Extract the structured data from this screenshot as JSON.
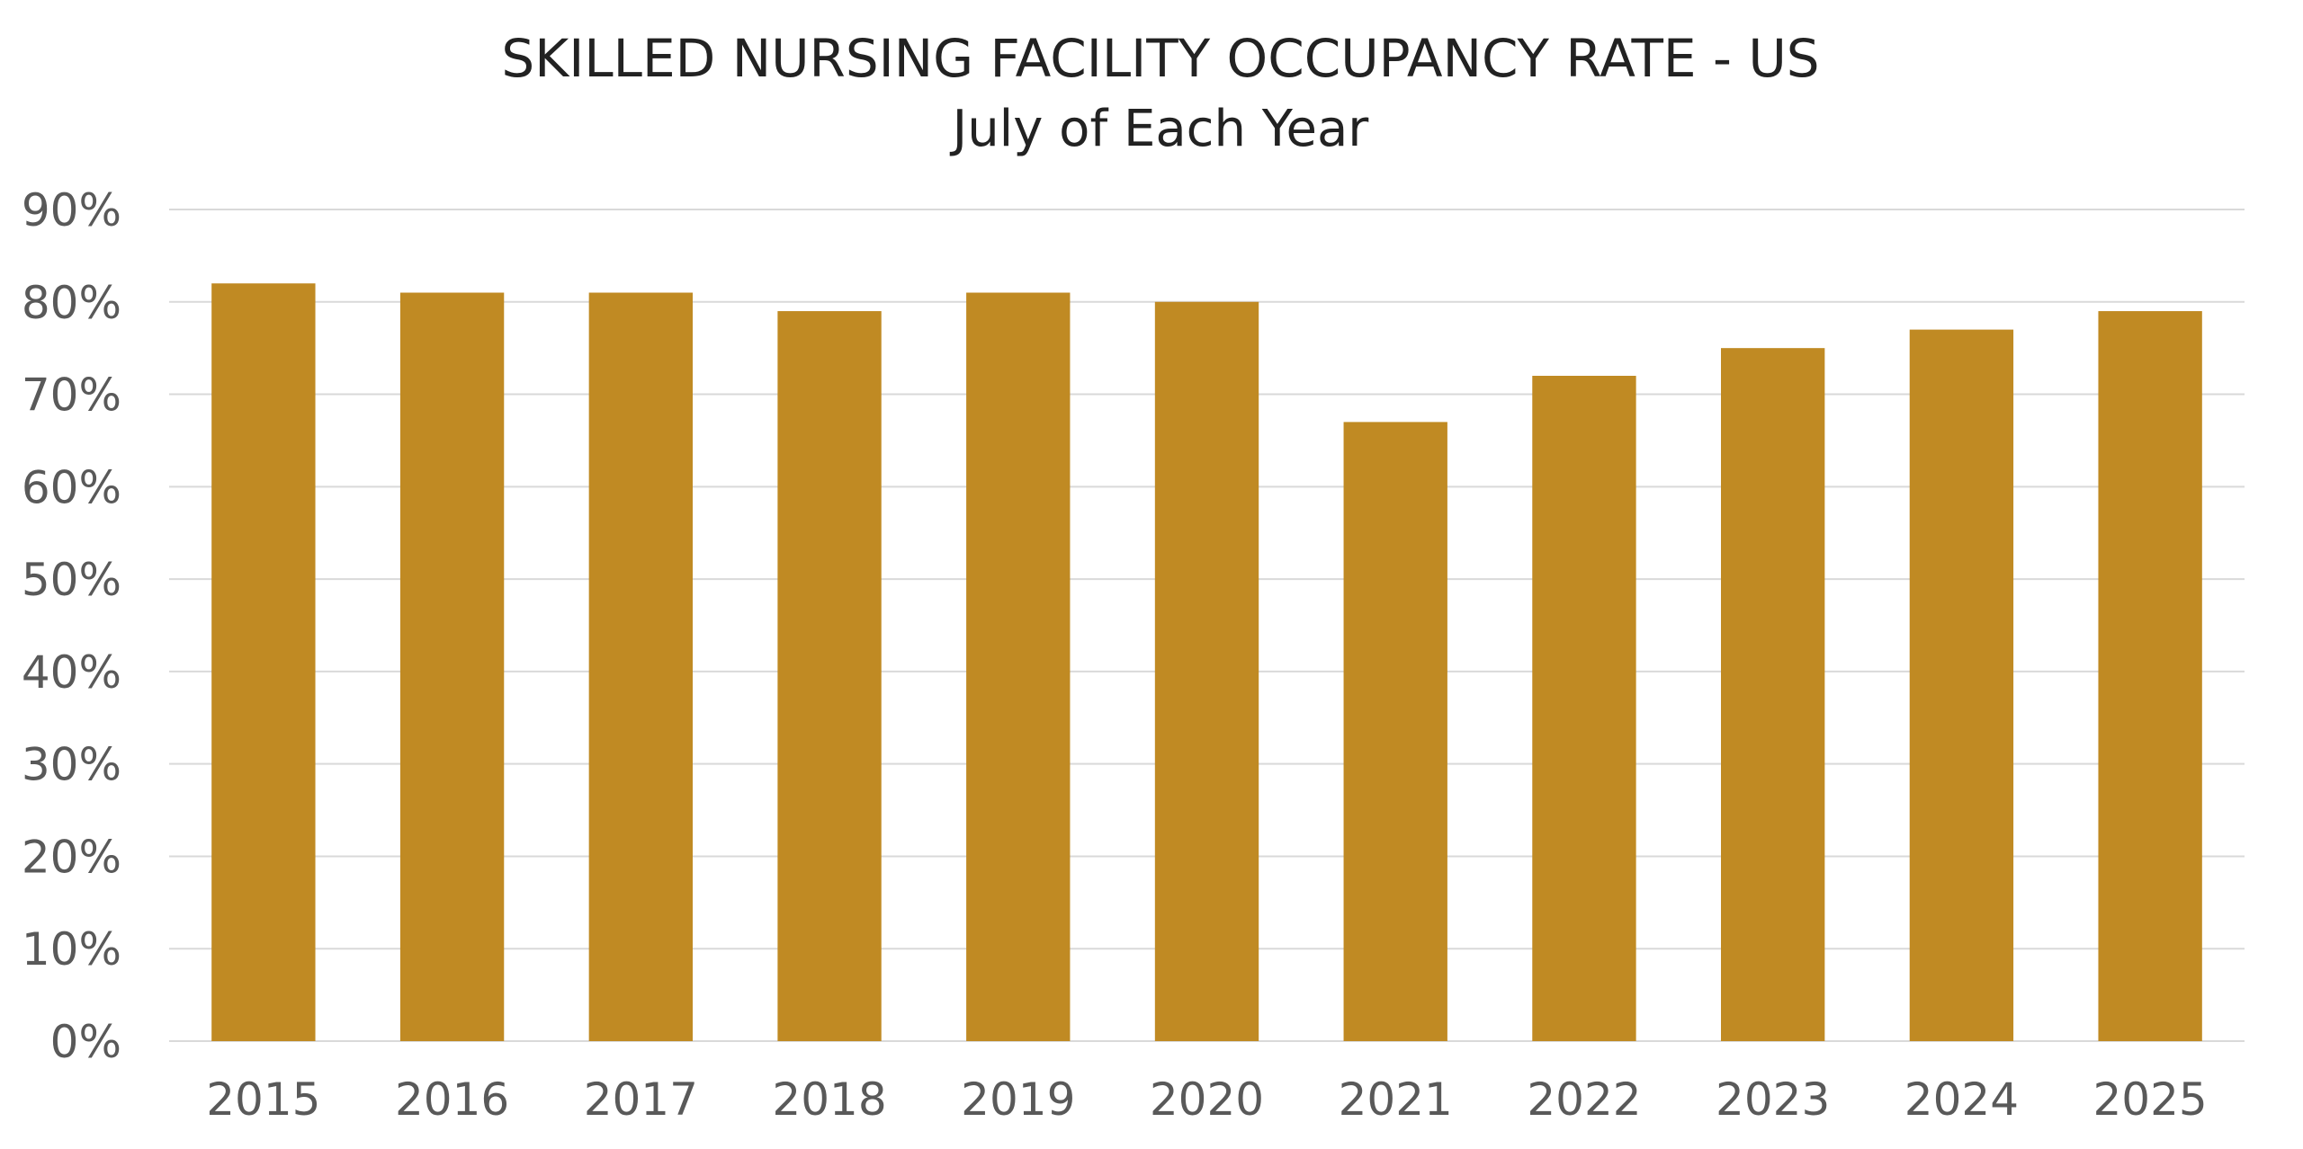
{
  "chart_data": {
    "type": "bar",
    "title": "SKILLED NURSING FACILITY OCCUPANCY RATE - US",
    "subtitle": "July of Each Year",
    "xlabel": "",
    "ylabel": "",
    "categories": [
      "2015",
      "2016",
      "2017",
      "2018",
      "2019",
      "2020",
      "2021",
      "2022",
      "2023",
      "2024",
      "2025"
    ],
    "values": [
      82,
      81,
      81,
      79,
      81,
      80,
      67,
      72,
      75,
      77,
      79
    ],
    "ylim": [
      0,
      90
    ],
    "yticks": [
      "0%",
      "10%",
      "20%",
      "30%",
      "40%",
      "50%",
      "60%",
      "70%",
      "80%",
      "90%"
    ],
    "grid": true,
    "legend": "none",
    "colors": {
      "bar": "#C08A23",
      "grid": "#D9D9D9",
      "text": "#595959"
    }
  }
}
